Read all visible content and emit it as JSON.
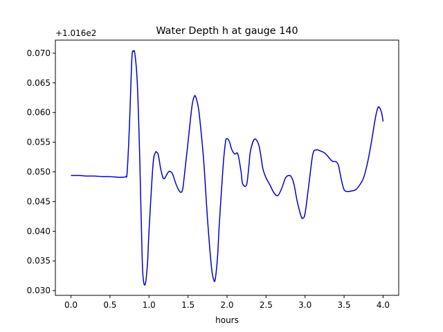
{
  "chart_data": {
    "type": "line",
    "title": "Water Depth h at gauge 140",
    "xlabel": "hours",
    "ylabel": "",
    "offset_label": "+1.016e2",
    "xlim": [
      -0.2,
      4.2
    ],
    "ylim": [
      0.0292,
      0.0722
    ],
    "xticks": [
      0.0,
      0.5,
      1.0,
      1.5,
      2.0,
      2.5,
      3.0,
      3.5,
      4.0
    ],
    "xtick_labels": [
      "0.0",
      "0.5",
      "1.0",
      "1.5",
      "2.0",
      "2.5",
      "3.0",
      "3.5",
      "4.0"
    ],
    "yticks": [
      0.03,
      0.035,
      0.04,
      0.045,
      0.05,
      0.055,
      0.06,
      0.065,
      0.07
    ],
    "ytick_labels": [
      "0.030",
      "0.035",
      "0.040",
      "0.045",
      "0.050",
      "0.055",
      "0.060",
      "0.065",
      "0.070"
    ],
    "grid": false,
    "series": [
      {
        "color": "#0000cc",
        "x": [
          0.0,
          0.1,
          0.2,
          0.3,
          0.4,
          0.5,
          0.6,
          0.65,
          0.7,
          0.72,
          0.75,
          0.78,
          0.8,
          0.82,
          0.85,
          0.88,
          0.9,
          0.92,
          0.95,
          0.98,
          1.0,
          1.05,
          1.08,
          1.1,
          1.12,
          1.15,
          1.18,
          1.2,
          1.23,
          1.26,
          1.3,
          1.35,
          1.4,
          1.43,
          1.45,
          1.5,
          1.55,
          1.58,
          1.6,
          1.63,
          1.65,
          1.7,
          1.75,
          1.8,
          1.83,
          1.85,
          1.88,
          1.9,
          1.95,
          1.98,
          2.0,
          2.03,
          2.06,
          2.1,
          2.13,
          2.15,
          2.18,
          2.2,
          2.25,
          2.28,
          2.3,
          2.35,
          2.4,
          2.43,
          2.46,
          2.5,
          2.55,
          2.6,
          2.65,
          2.7,
          2.75,
          2.8,
          2.83,
          2.86,
          2.9,
          2.95,
          2.97,
          3.0,
          3.05,
          3.1,
          3.15,
          3.2,
          3.25,
          3.3,
          3.35,
          3.4,
          3.43,
          3.46,
          3.5,
          3.55,
          3.6,
          3.65,
          3.7,
          3.75,
          3.8,
          3.85,
          3.9,
          3.93,
          3.95,
          3.98,
          4.0
        ],
        "y": [
          0.0494,
          0.0494,
          0.0493,
          0.0493,
          0.0492,
          0.0492,
          0.0491,
          0.0491,
          0.0492,
          0.05,
          0.058,
          0.069,
          0.0703,
          0.0698,
          0.065,
          0.053,
          0.042,
          0.033,
          0.031,
          0.0345,
          0.04,
          0.051,
          0.0532,
          0.0533,
          0.0528,
          0.0505,
          0.049,
          0.0489,
          0.0496,
          0.0501,
          0.0497,
          0.0478,
          0.0466,
          0.047,
          0.049,
          0.055,
          0.061,
          0.0627,
          0.0626,
          0.061,
          0.059,
          0.052,
          0.042,
          0.034,
          0.0318,
          0.032,
          0.036,
          0.041,
          0.051,
          0.055,
          0.0556,
          0.0551,
          0.0538,
          0.053,
          0.0532,
          0.0524,
          0.05,
          0.048,
          0.0478,
          0.051,
          0.0535,
          0.0555,
          0.0548,
          0.053,
          0.0505,
          0.049,
          0.0478,
          0.0465,
          0.046,
          0.0472,
          0.049,
          0.0494,
          0.049,
          0.0478,
          0.045,
          0.0425,
          0.0422,
          0.043,
          0.048,
          0.053,
          0.0537,
          0.0535,
          0.0532,
          0.0525,
          0.0518,
          0.0517,
          0.051,
          0.049,
          0.047,
          0.0467,
          0.0468,
          0.047,
          0.0478,
          0.049,
          0.0515,
          0.055,
          0.059,
          0.0607,
          0.0609,
          0.06,
          0.0585
        ]
      }
    ]
  }
}
